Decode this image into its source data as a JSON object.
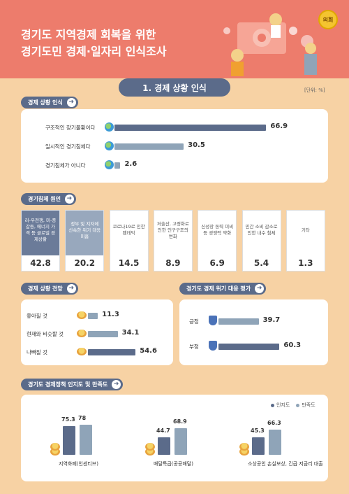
{
  "header": {
    "title_line1": "경기도 지역경제 회복을 위한",
    "title_line2": "경기도민 경제·일자리 인식조사",
    "badge": "의회"
  },
  "section1": {
    "title": "1. 경제 상황 인식",
    "unit": "[단위: %]"
  },
  "colors": {
    "dark": "#5b6b8a",
    "light": "#8fa4b8",
    "header": "#ed7c6c",
    "bg": "#f7d2a4"
  },
  "chart_data": [
    {
      "id": "economic_perception",
      "type": "bar",
      "title": "경제 상황 인식",
      "categories": [
        "구조적인 장기불황이다",
        "일시적인 경기침체다",
        "경기침체가 아니다"
      ],
      "values": [
        66.9,
        30.5,
        2.6
      ]
    },
    {
      "id": "recession_causes",
      "type": "bar",
      "title": "경기침체 원인",
      "categories": [
        "러-우전쟁, 미-중갈등, 에너지 가격 등 글로벌 경제상황",
        "정부 및 지자체 신속한 위기 대응 미흡",
        "코로나19로 인한 팬데믹",
        "저출산, 고령화로 인한 인구구조의 변화",
        "신성장 동력 미비 등 경쟁력 약화",
        "민간 소비 감소로 인한 내수 침체",
        "기타"
      ],
      "values": [
        42.8,
        20.2,
        14.5,
        8.9,
        6.9,
        5.4,
        1.3
      ]
    },
    {
      "id": "economic_outlook",
      "type": "bar",
      "title": "경제 상황 전망",
      "categories": [
        "좋아질 것",
        "현재와 비슷할 것",
        "나빠질 것"
      ],
      "values": [
        11.3,
        34.1,
        54.6
      ]
    },
    {
      "id": "crisis_response",
      "type": "bar",
      "title": "경기도 경제 위기 대응 평가",
      "categories": [
        "긍정",
        "부정"
      ],
      "values": [
        39.7,
        60.3
      ]
    },
    {
      "id": "policy_awareness",
      "type": "bar",
      "title": "경기도 경제정책 인지도 및 만족도",
      "categories": [
        "지역화폐(인센티브)",
        "배달특급(공공배달)",
        "소상공인 손실보상, 긴급 저금리 대출"
      ],
      "series": [
        {
          "name": "인지도",
          "values": [
            75.3,
            44.7,
            45.3
          ]
        },
        {
          "name": "만족도",
          "values": [
            78.0,
            68.9,
            66.3
          ]
        }
      ]
    }
  ]
}
